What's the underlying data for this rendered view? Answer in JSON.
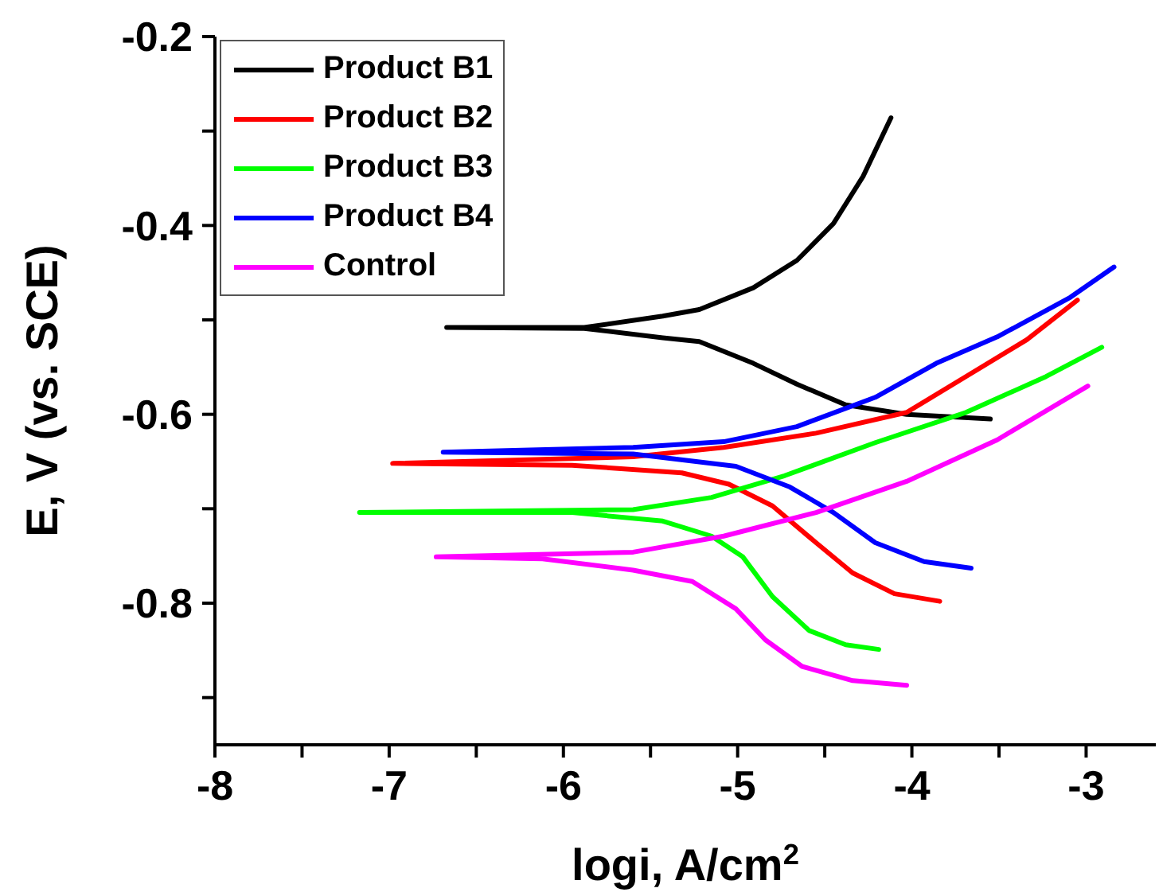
{
  "chart_data": {
    "type": "line",
    "xlabel": "logi, A/cm$^{2}$",
    "ylabel": "E, V (vs. SCE)",
    "xlim": [
      -8,
      -2.6
    ],
    "xticks": [
      -8,
      {
        "value": -7.5,
        "label": null
      },
      -7,
      {
        "value": -6.5,
        "label": null
      },
      -6,
      {
        "value": -5.5,
        "label": null
      },
      -5,
      {
        "value": -4.5,
        "label": null
      },
      -4,
      {
        "value": -3.5,
        "label": null
      },
      -3
    ],
    "ylim": [
      -0.95,
      -0.2
    ],
    "yticks": [
      -0.2,
      {
        "value": -0.3,
        "label": null
      },
      -0.4,
      {
        "value": -0.5,
        "label": null
      },
      -0.6,
      {
        "value": -0.7,
        "label": null
      },
      -0.8,
      {
        "value": -0.9,
        "label": null
      }
    ],
    "legend": "top left",
    "grid": false,
    "marker": "none",
    "line_style": "solid",
    "series": [
      {
        "name": "Product B1",
        "color": "#000000",
        "x": [
          -3.55,
          -4.03,
          -4.38,
          -4.66,
          -4.91,
          -5.22,
          -5.43,
          -5.88,
          -6.67,
          -5.88,
          -5.43,
          -5.22,
          -4.91,
          -4.66,
          -4.45,
          -4.28,
          -4.12
        ],
        "values": [
          -0.605,
          -0.6,
          -0.59,
          -0.568,
          -0.546,
          -0.523,
          -0.519,
          -0.509,
          -0.508,
          -0.508,
          -0.496,
          -0.489,
          -0.466,
          -0.437,
          -0.398,
          -0.348,
          -0.286
        ]
      },
      {
        "name": "Product B2",
        "color": "#ff0000",
        "x": [
          -3.84,
          -4.1,
          -4.34,
          -4.55,
          -4.8,
          -5.05,
          -5.32,
          -5.95,
          -6.98,
          -5.6,
          -5.08,
          -4.55,
          -4.03,
          -3.69,
          -3.34,
          -3.05
        ],
        "values": [
          -0.798,
          -0.79,
          -0.768,
          -0.736,
          -0.697,
          -0.674,
          -0.662,
          -0.654,
          -0.652,
          -0.645,
          -0.635,
          -0.62,
          -0.598,
          -0.56,
          -0.521,
          -0.479
        ]
      },
      {
        "name": "Product B3",
        "color": "#00ff00",
        "x": [
          -4.19,
          -4.38,
          -4.59,
          -4.8,
          -4.97,
          -5.15,
          -5.43,
          -5.95,
          -7.17,
          -5.6,
          -5.15,
          -4.73,
          -4.21,
          -3.69,
          -3.23,
          -2.91
        ],
        "values": [
          -0.849,
          -0.844,
          -0.829,
          -0.793,
          -0.751,
          -0.729,
          -0.713,
          -0.704,
          -0.704,
          -0.701,
          -0.688,
          -0.665,
          -0.63,
          -0.598,
          -0.56,
          -0.529
        ]
      },
      {
        "name": "Product B4",
        "color": "#0000ff",
        "x": [
          -3.66,
          -3.93,
          -4.21,
          -4.45,
          -4.7,
          -5.01,
          -5.6,
          -6.69,
          -5.6,
          -5.08,
          -4.66,
          -4.21,
          -3.86,
          -3.51,
          -3.09,
          -2.84
        ],
        "values": [
          -0.763,
          -0.756,
          -0.736,
          -0.704,
          -0.677,
          -0.655,
          -0.642,
          -0.64,
          -0.635,
          -0.629,
          -0.613,
          -0.582,
          -0.546,
          -0.518,
          -0.476,
          -0.444
        ]
      },
      {
        "name": "Control",
        "color": "#ff00ff",
        "x": [
          -4.03,
          -4.34,
          -4.63,
          -4.84,
          -5.01,
          -5.26,
          -5.6,
          -6.12,
          -6.73,
          -5.6,
          -5.08,
          -4.55,
          -4.03,
          -3.51,
          -2.99
        ],
        "values": [
          -0.887,
          -0.882,
          -0.867,
          -0.839,
          -0.806,
          -0.777,
          -0.765,
          -0.753,
          -0.751,
          -0.746,
          -0.729,
          -0.704,
          -0.671,
          -0.627,
          -0.57
        ]
      }
    ]
  }
}
